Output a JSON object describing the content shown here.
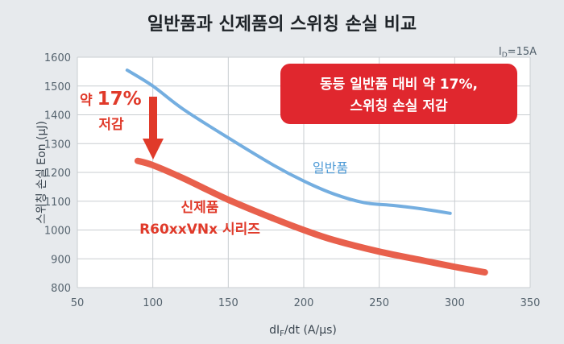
{
  "title": "일반품과 신제품의 스위칭 손실 비교",
  "condition": "I",
  "condition_sub": "D",
  "condition_value": "=15A",
  "callout": {
    "line1": "동등 일반품 대비 약 17%,",
    "line2": "스위칭 손실 저감"
  },
  "reduction_label": {
    "prefix": "약",
    "value": "17%",
    "suffix": "저감"
  },
  "colors": {
    "background": "#e7eaed",
    "plot_bg": "#ffffff",
    "grid": "#c9cdd1",
    "general_line": "#74aee0",
    "new_line": "#e8604c",
    "accent_red": "#e03a2a",
    "callout_fill": "#e0272e"
  },
  "chart_data": {
    "type": "line",
    "title": "일반품과 신제품의 스위칭 손실 비교",
    "xlabel_prefix": "dI",
    "xlabel_sub": "F",
    "xlabel_suffix": "/dt (A/μs)",
    "ylabel": "스위칭 손실 Eon (μJ)",
    "xlim": [
      50,
      350
    ],
    "ylim": [
      800,
      1600
    ],
    "xticks": [
      50,
      100,
      150,
      200,
      250,
      300,
      350
    ],
    "yticks": [
      800,
      900,
      1000,
      1100,
      1200,
      1300,
      1400,
      1500,
      1600
    ],
    "grid": true,
    "series": [
      {
        "name": "일반품",
        "color": "#74aee0",
        "x": [
          83,
          100,
          120,
          150,
          180,
          200,
          220,
          240,
          260,
          280,
          297
        ],
        "y": [
          1555,
          1500,
          1420,
          1320,
          1225,
          1170,
          1125,
          1095,
          1085,
          1072,
          1058
        ]
      },
      {
        "name": "신제품 R60xxVNx 시리즈",
        "label_line1": "신제품",
        "label_line2": "R60xxVNx 시리즈",
        "color": "#e8604c",
        "x": [
          90,
          100,
          120,
          150,
          180,
          200,
          220,
          250,
          280,
          300,
          320
        ],
        "y": [
          1240,
          1225,
          1180,
          1105,
          1040,
          1000,
          965,
          925,
          893,
          872,
          853
        ]
      }
    ]
  }
}
